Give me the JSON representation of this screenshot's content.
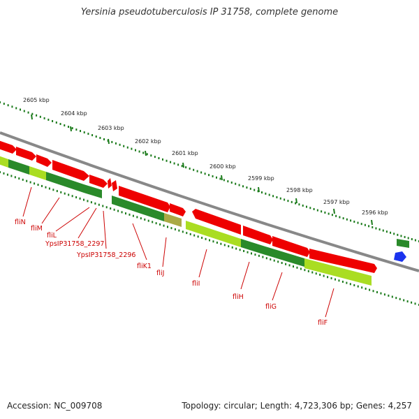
{
  "title": "Yersinia pseudotuberculosis IP 31758, complete genome",
  "footer": {
    "accession": "Accession: NC_009708",
    "topology": "Topology: circular; Length: 4,723,306 bp; Genes: 4,257"
  },
  "colors": {
    "forward_gene": "#ee0000",
    "reverse_gene": "#2a8a2a",
    "reverse_gene_light": "#aadd22",
    "tick": "#1a7a1a",
    "backbone": "#888888",
    "label": "#cc0000",
    "other_feature": "#1a33ee"
  },
  "kbp_ticks": [
    "2605 kbp",
    "2604 kbp",
    "2603 kbp",
    "2602 kbp",
    "2601 kbp",
    "2600 kbp",
    "2599 kbp",
    "2598 kbp",
    "2597 kbp",
    "2596 kbp"
  ],
  "gene_labels": [
    "fliN",
    "fliM",
    "fliL",
    "YpsIP31758_2297",
    "YpsIP31758_2296",
    "fliK1",
    "fliJ",
    "fliI",
    "fliH",
    "fliG",
    "fliF"
  ]
}
